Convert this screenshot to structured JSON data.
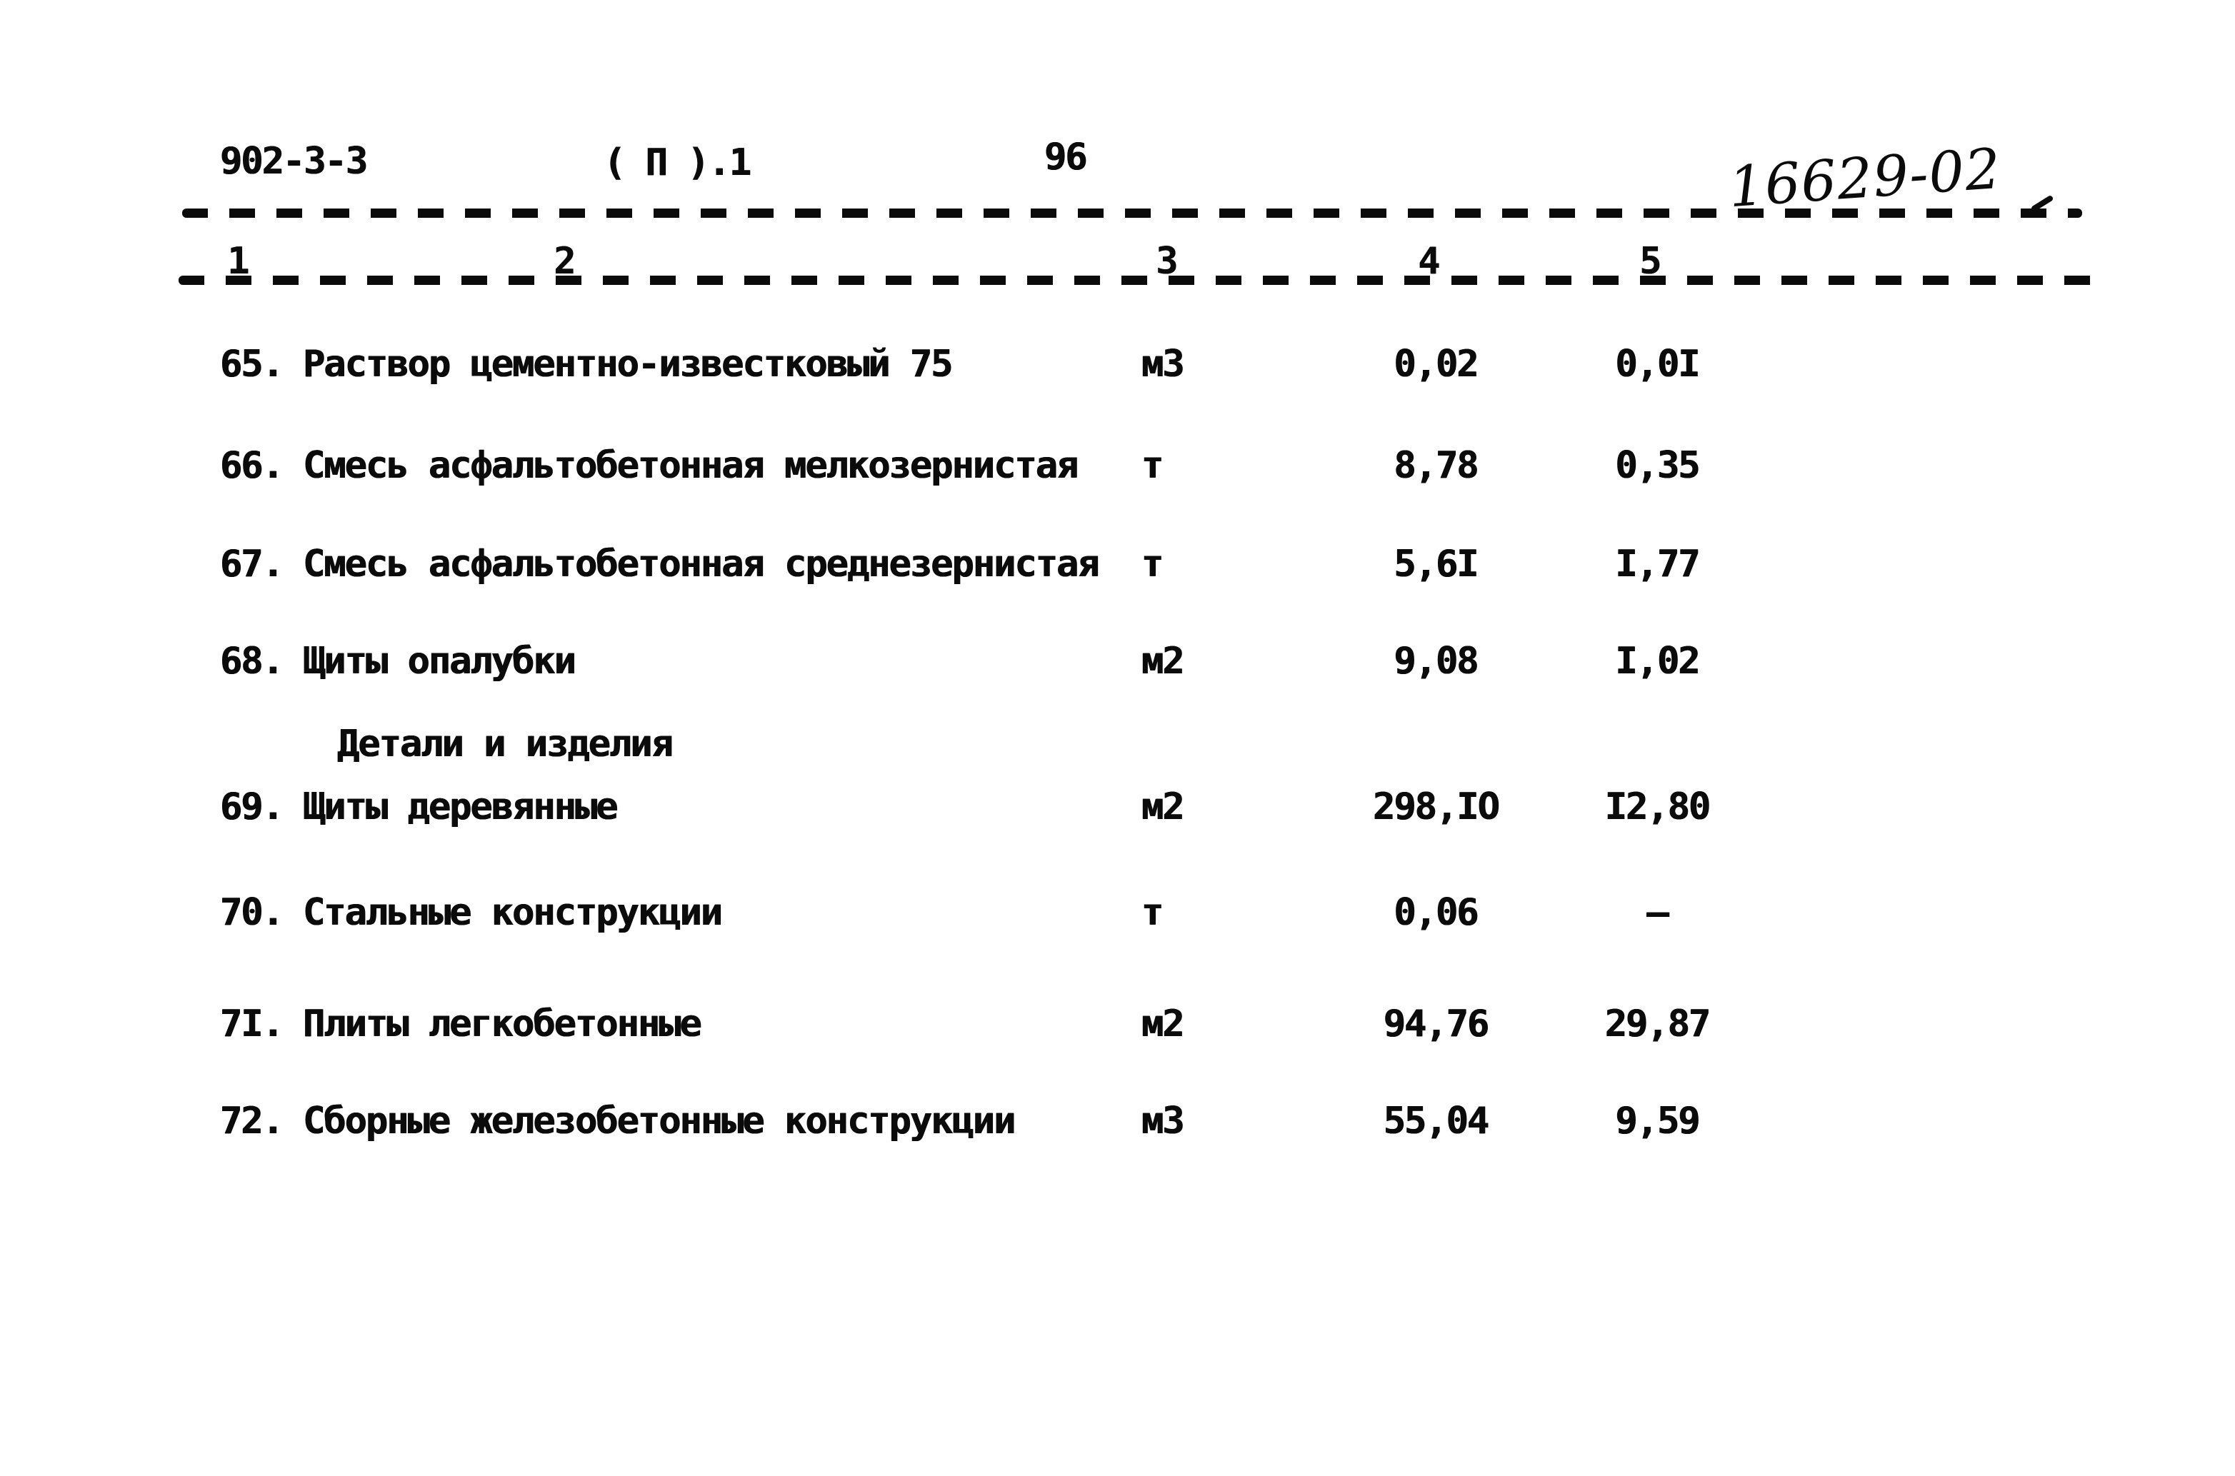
{
  "header": {
    "doc_code": "902-3-3",
    "series_mark": "( П ).1",
    "page_number": "96",
    "handwritten_number": "16629-02"
  },
  "table": {
    "column_numbers": [
      "1",
      "2",
      "3",
      "4",
      "5"
    ],
    "rows": [
      {
        "type": "item",
        "num": "65.",
        "name": "Раствор цементно-известковый 75",
        "unit": "м3",
        "col4": "0,02",
        "col5": "0,0I"
      },
      {
        "type": "item",
        "num": "66.",
        "name": "Смесь асфальтобетонная мелкозернистая",
        "unit": "т",
        "col4": "8,78",
        "col5": "0,35"
      },
      {
        "type": "item",
        "num": "67.",
        "name": "Смесь асфальтобетонная среднезернистая",
        "unit": "т",
        "col4": "5,6I",
        "col5": "I,77"
      },
      {
        "type": "item",
        "num": "68.",
        "name": "Щиты опалубки",
        "unit": "м2",
        "col4": "9,08",
        "col5": "I,02"
      },
      {
        "type": "group",
        "name": "Детали и изделия"
      },
      {
        "type": "item",
        "num": "69.",
        "name": "Щиты деревянные",
        "unit": "м2",
        "col4": "298,IO",
        "col5": "I2,80"
      },
      {
        "type": "item",
        "num": "70.",
        "name": "Стальные конструкции",
        "unit": "т",
        "col4": "0,06",
        "col5": "–"
      },
      {
        "type": "item",
        "num": "7I.",
        "name": "Плиты легкобетонные",
        "unit": "м2",
        "col4": "94,76",
        "col5": "29,87"
      },
      {
        "type": "item",
        "num": "72.",
        "name": "Сборные железобетонные конструкции",
        "unit": "м3",
        "col4": "55,04",
        "col5": "9,59"
      }
    ]
  },
  "colors": {
    "ink": "#0b0b0b",
    "paper": "#ffffff"
  }
}
